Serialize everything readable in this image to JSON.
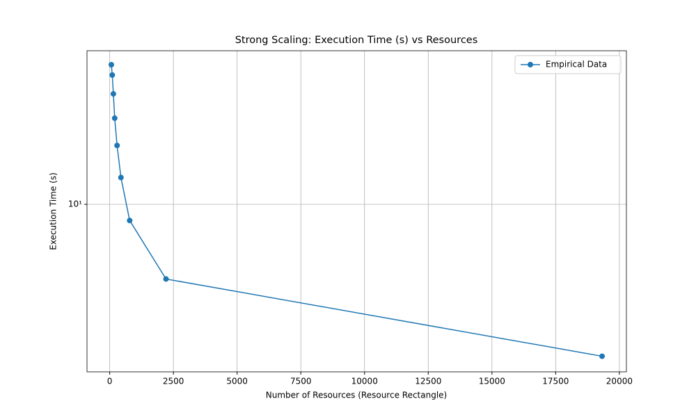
{
  "chart_data": {
    "type": "line",
    "title": "Strong Scaling: Execution Time (s) vs Resources",
    "xlabel": "Number of Resources (Resource Rectangle)",
    "ylabel": "Execution Time (s)",
    "x": [
      64,
      100,
      144,
      196,
      289,
      441,
      784,
      2209,
      19321
    ],
    "series": [
      {
        "name": "Empirical Data",
        "color": "#1f77b4",
        "values": [
          55.5,
          48.9,
          38.8,
          28.8,
          20.6,
          13.9,
          8.2,
          4.0,
          1.55
        ]
      }
    ],
    "xlim": [
      -891,
      20276
    ],
    "xticks": [
      0,
      2500,
      5000,
      7500,
      10000,
      12500,
      15000,
      17500,
      20000
    ],
    "ylim": [
      1.28,
      65.9
    ],
    "yticks": [
      {
        "value": 10,
        "label": "10¹"
      }
    ],
    "yscale": "log",
    "grid": true,
    "legend": "upper-right"
  }
}
